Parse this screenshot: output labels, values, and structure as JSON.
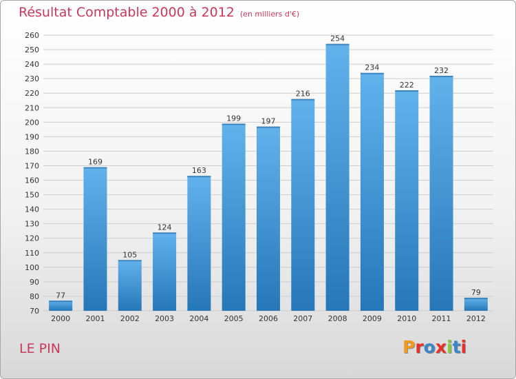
{
  "header": {
    "title": "Résultat Comptable 2000 à 2012",
    "unit": "(en milliers d'€)"
  },
  "footer": {
    "commune": "LE PIN",
    "logo_text": "Proxiti",
    "logo_colors": [
      "#f39a1e",
      "#e8302a",
      "#3a86c8",
      "#e8302a",
      "#8cc63f",
      "#3a86c8",
      "#e8302a"
    ]
  },
  "colors": {
    "title": "#c8385a",
    "bar_light": "#62b2ec",
    "bar_dark": "#2677b8",
    "grid": "#cccccc"
  },
  "chart_data": {
    "type": "bar",
    "title": "Résultat Comptable 2000 à 2012",
    "ylabel": "en milliers d'€",
    "xlabel": "",
    "categories": [
      "2000",
      "2001",
      "2002",
      "2003",
      "2004",
      "2005",
      "2006",
      "2007",
      "2008",
      "2009",
      "2010",
      "2011",
      "2012"
    ],
    "values": [
      77,
      169,
      105,
      124,
      163,
      199,
      197,
      216,
      254,
      234,
      222,
      232,
      79
    ],
    "ylim": [
      70,
      260
    ],
    "ytick_step": 10,
    "grid": true,
    "show_values": true
  }
}
